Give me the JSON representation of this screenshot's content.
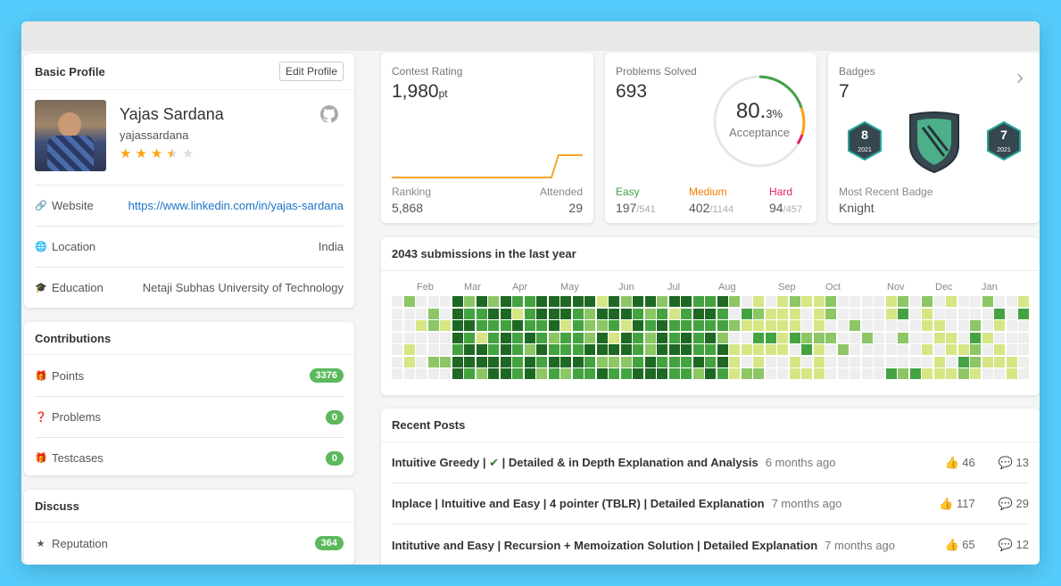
{
  "profile": {
    "header": "Basic Profile",
    "edit_label": "Edit Profile",
    "name": "Yajas Sardana",
    "username": "yajassardana",
    "stars": 3.5,
    "website_label": "Website",
    "website_value": "https://www.linkedin.com/in/yajas-sardana",
    "location_label": "Location",
    "location_value": "India",
    "education_label": "Education",
    "education_value": "Netaji Subhas University of Technology"
  },
  "contributions": {
    "header": "Contributions",
    "items": [
      {
        "label": "Points",
        "value": "3376"
      },
      {
        "label": "Problems",
        "value": "0"
      },
      {
        "label": "Testcases",
        "value": "0"
      }
    ]
  },
  "discuss": {
    "header": "Discuss",
    "items": [
      {
        "label": "Reputation",
        "value": "364"
      }
    ]
  },
  "contest": {
    "title": "Contest Rating",
    "rating": "1,980",
    "unit": "pt",
    "ranking_label": "Ranking",
    "ranking_value": "5,868",
    "attended_label": "Attended",
    "attended_value": "29",
    "line_color": "#f5a623",
    "series": [
      0,
      0,
      0,
      0,
      0,
      0,
      0,
      0,
      0,
      0,
      0,
      0,
      0,
      0,
      0,
      0,
      0,
      0,
      0,
      0,
      0,
      0,
      0,
      0,
      0,
      0,
      0,
      0,
      0,
      0,
      0,
      0,
      0,
      0,
      0,
      0,
      0,
      0,
      0,
      0,
      0,
      0,
      0,
      0,
      0,
      0,
      0,
      0.5,
      1,
      1,
      1,
      1,
      1,
      1,
      1,
      1
    ]
  },
  "problems": {
    "title": "Problems Solved",
    "total": "693",
    "acceptance_int": "80.",
    "acceptance_dec": "3%",
    "acceptance_label": "Acceptance",
    "easy_label": "Easy",
    "easy_solved": "197",
    "easy_total": "/541",
    "medium_label": "Medium",
    "medium_solved": "402",
    "medium_total": "/1144",
    "hard_label": "Hard",
    "hard_solved": "94",
    "hard_total": "/457",
    "easy_color": "#43a047",
    "medium_color": "#ffa116",
    "hard_color": "#e91e63"
  },
  "badges": {
    "title": "Badges",
    "count": "7",
    "recent_label": "Most Recent Badge",
    "recent_value": "Knight",
    "left_badge_num": "8",
    "left_badge_year": "2021",
    "right_badge_num": "7",
    "right_badge_year": "2021"
  },
  "submissions": {
    "header": "2043 submissions in the last year",
    "months": [
      "Feb",
      "Mar",
      "Apr",
      "May",
      "Jun",
      "Jul",
      "Aug",
      "Sep",
      "Oct",
      "Nov",
      "Dec",
      "Jan"
    ],
    "palette": [
      "#eeeeee",
      "#d6e685",
      "#8cc665",
      "#44a340",
      "#1e6823"
    ]
  },
  "posts": {
    "header": "Recent Posts",
    "items": [
      {
        "title": "Intuitive Greedy | ✔ | Detailed & in Depth Explanation and Analysis",
        "time": "6 months ago",
        "likes": "46",
        "comments": "13"
      },
      {
        "title": "Inplace | Intuitive and Easy | 4 pointer (TBLR) | Detailed Explanation",
        "time": "7 months ago",
        "likes": "117",
        "comments": "29"
      },
      {
        "title": "Intitutive and Easy | Recursion + Memoization Solution | Detailed Explanation",
        "time": "7 months ago",
        "likes": "65",
        "comments": "12"
      }
    ]
  }
}
